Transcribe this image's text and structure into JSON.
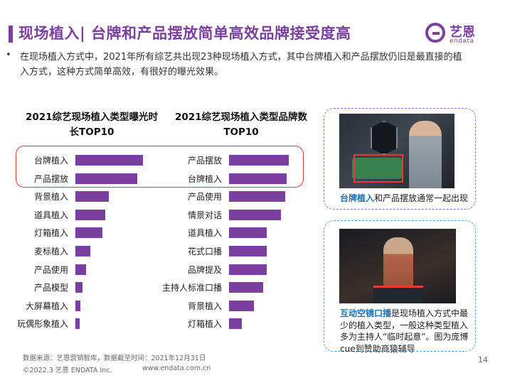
{
  "header": {
    "title": "现场植入| 台牌和产品摆放简单高效品牌接受度高",
    "logo_cn": "艺恩",
    "logo_en": "endata"
  },
  "intro": {
    "bullet": "•",
    "text": "在现场植入方式中，2021年所有综艺共出现23种现场植入方式，其中台牌植入和产品摆放仍旧是最直接的植入方式，这种方式简单高效，有很好的曝光效果。"
  },
  "chart_data": [
    {
      "type": "bar",
      "title": "2021综艺现场植入类型曝光时长TOP10",
      "categories": [
        "台牌植入",
        "产品摆放",
        "背景植入",
        "道具植入",
        "灯箱植入",
        "麦标植入",
        "产品使用",
        "产品模型",
        "大屏幕植入",
        "玩偶形象植入"
      ],
      "values": [
        100,
        92,
        49,
        44,
        40,
        22,
        16,
        11,
        7,
        6
      ],
      "color": "#7b3fa0"
    },
    {
      "type": "bar",
      "title": "2021综艺现场植入类型品牌数TOP10",
      "categories": [
        "产品摆放",
        "台牌植入",
        "产品使用",
        "情景对话",
        "道具植入",
        "花式口播",
        "品牌提及",
        "主持人标准口播",
        "背景植入",
        "灯箱植入"
      ],
      "values": [
        100,
        97,
        94,
        87,
        63,
        63,
        63,
        57,
        42,
        21
      ],
      "color": "#7b3fa0"
    }
  ],
  "cards": {
    "card1_highlight": "台牌植入",
    "card1_rest": "和产品摆放通常一起出现",
    "card2_highlight": "互动空镜口播",
    "card2_rest": "是现场植入方式中最少的植入类型，一般这种类型植入多为主持人“临时起意”。图为庞博cue到赞助商猿辅导"
  },
  "footer": {
    "source": "数据来源：艺恩营销智库，数据截至时间：2021年12月31日",
    "copyright": "©2022.3 艺恩 ENDATA Inc.",
    "website": "www.endata.com.cn",
    "page": "14"
  },
  "colors": {
    "accent": "#7b3fa0",
    "highlight_box": "#e23b3b",
    "caption_highlight": "#1f6fb5"
  }
}
